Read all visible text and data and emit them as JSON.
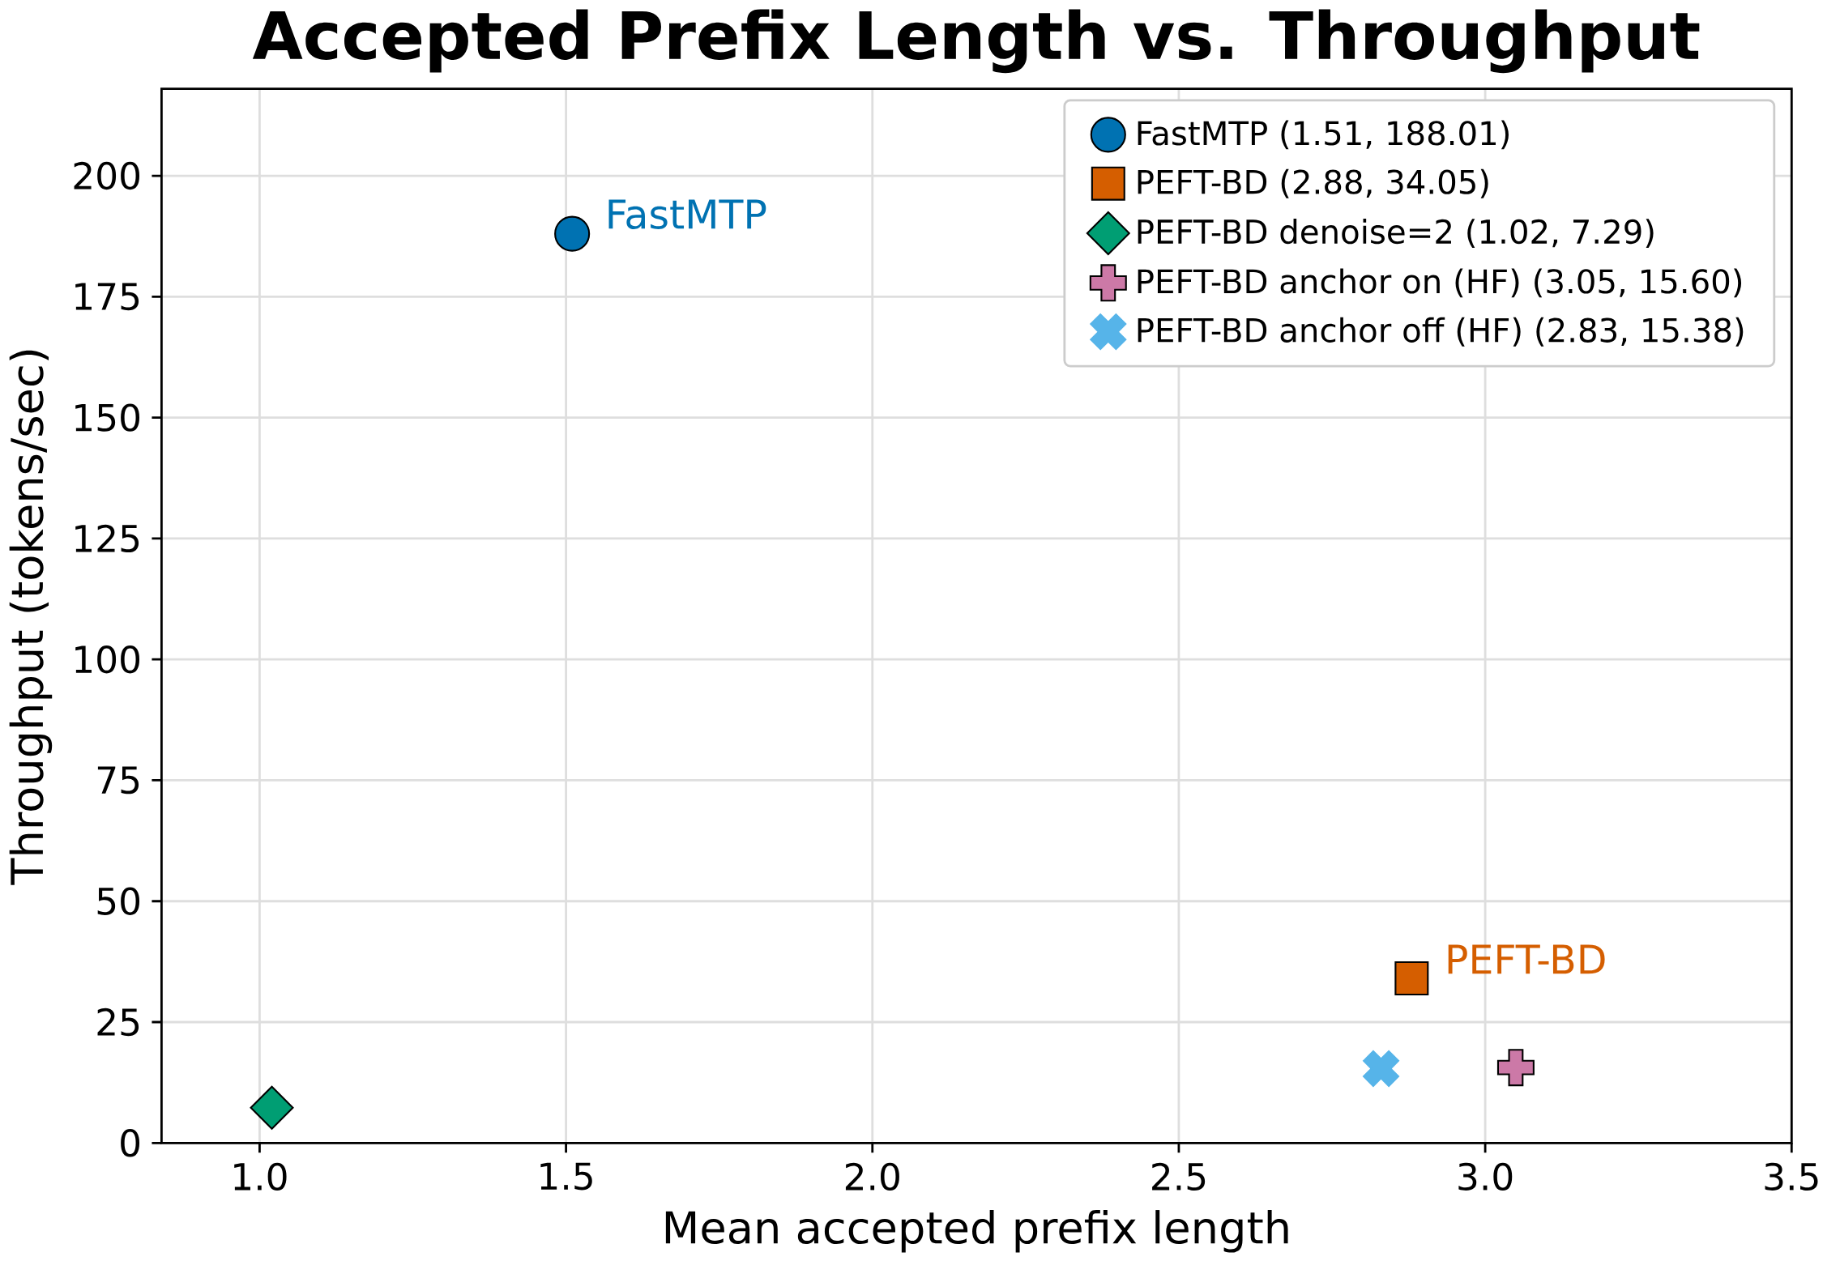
{
  "chart_data": {
    "type": "scatter",
    "title": "Accepted Prefix Length vs. Throughput",
    "xlabel": "Mean accepted prefix length",
    "ylabel": "Throughput (tokens/sec)",
    "xlim": [
      0.84,
      3.5
    ],
    "ylim": [
      0,
      218
    ],
    "xticks": [
      {
        "value": 1.0,
        "label": "1.0"
      },
      {
        "value": 1.5,
        "label": "1.5"
      },
      {
        "value": 2.0,
        "label": "2.0"
      },
      {
        "value": 2.5,
        "label": "2.5"
      },
      {
        "value": 3.0,
        "label": "3.0"
      },
      {
        "value": 3.5,
        "label": "3.5"
      }
    ],
    "yticks": [
      0,
      25,
      50,
      75,
      100,
      125,
      150,
      175,
      200
    ],
    "grid": true,
    "legend": "top right",
    "series": [
      {
        "name": "FastMTP (1.51, 188.01)",
        "color": "#0072b2",
        "marker": "circle",
        "x": [
          1.51
        ],
        "values": [
          188.01
        ]
      },
      {
        "name": "PEFT-BD (2.88, 34.05)",
        "color": "#d55e00",
        "marker": "square",
        "x": [
          2.88
        ],
        "values": [
          34.05
        ]
      },
      {
        "name": "PEFT-BD denoise=2 (1.02, 7.29)",
        "color": "#009e73",
        "marker": "diamond",
        "x": [
          1.02
        ],
        "values": [
          7.29
        ]
      },
      {
        "name": "PEFT-BD anchor on (HF) (3.05, 15.60)",
        "color": "#cc79a7",
        "marker": "plus",
        "x": [
          3.05
        ],
        "values": [
          15.6
        ]
      },
      {
        "name": "PEFT-BD anchor off (HF) (2.83, 15.38)",
        "color": "#56b4e9",
        "marker": "cross",
        "x": [
          2.83
        ],
        "values": [
          15.38
        ]
      }
    ],
    "annotations": [
      {
        "text": "FastMTP",
        "x": 1.51,
        "y": 188.01
      },
      {
        "text": "PEFT-BD",
        "x": 2.88,
        "y": 34.05
      }
    ]
  }
}
